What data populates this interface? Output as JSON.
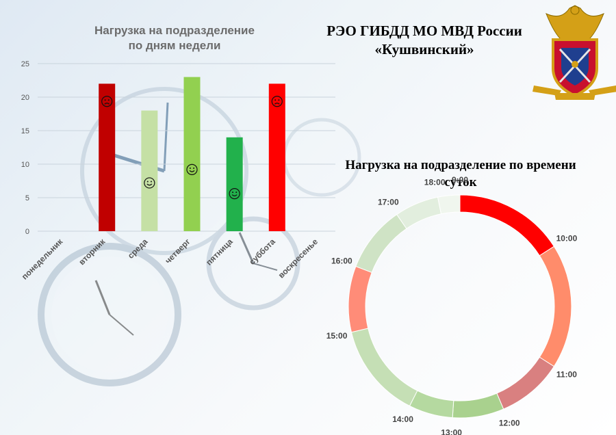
{
  "header": {
    "org_line1": "РЭО ГИБДД МО МВД России",
    "org_line2": "«Кушвинский»"
  },
  "chart_data": [
    {
      "type": "bar",
      "title": "Нагрузка на подразделение по дням недели",
      "title_lines": [
        "Нагрузка на подразделение",
        "по дням недели"
      ],
      "categories": [
        "понедельник",
        "вторник",
        "среда",
        "четверг",
        "пятница",
        "суббота",
        "воскресенье"
      ],
      "values": [
        0,
        22,
        18,
        23,
        14,
        22,
        0
      ],
      "bar_colors": [
        "#c00000",
        "#c00000",
        "#c5e0a5",
        "#92d050",
        "#22b14c",
        "#ff0000",
        "#c00000"
      ],
      "faces": [
        "",
        "sad",
        "happy",
        "happy",
        "happy",
        "sad",
        ""
      ],
      "yticks": [
        0,
        5,
        10,
        15,
        20,
        25
      ],
      "ylim": [
        0,
        25
      ],
      "grid": true,
      "legend": "none"
    },
    {
      "type": "pie",
      "variant": "donut",
      "title": "Нагрузка на подразделение по времени суток",
      "title_lines": [
        "Нагрузка  на  подразделение  по  времени",
        "суток"
      ],
      "categories": [
        "9:00",
        "10:00",
        "11:00",
        "12:00",
        "13:00",
        "14:00",
        "15:00",
        "16:00",
        "17:00",
        "18:00"
      ],
      "values": [
        15,
        17,
        9,
        7,
        6,
        13,
        9,
        9,
        6,
        3
      ],
      "colors": [
        "#ff0000",
        "#ff8c6b",
        "#d98080",
        "#a9d18e",
        "#b5d9a0",
        "#c5dfb5",
        "#ff8c78",
        "#cfe3c5",
        "#e2eede",
        "#f0f6ee"
      ]
    }
  ]
}
